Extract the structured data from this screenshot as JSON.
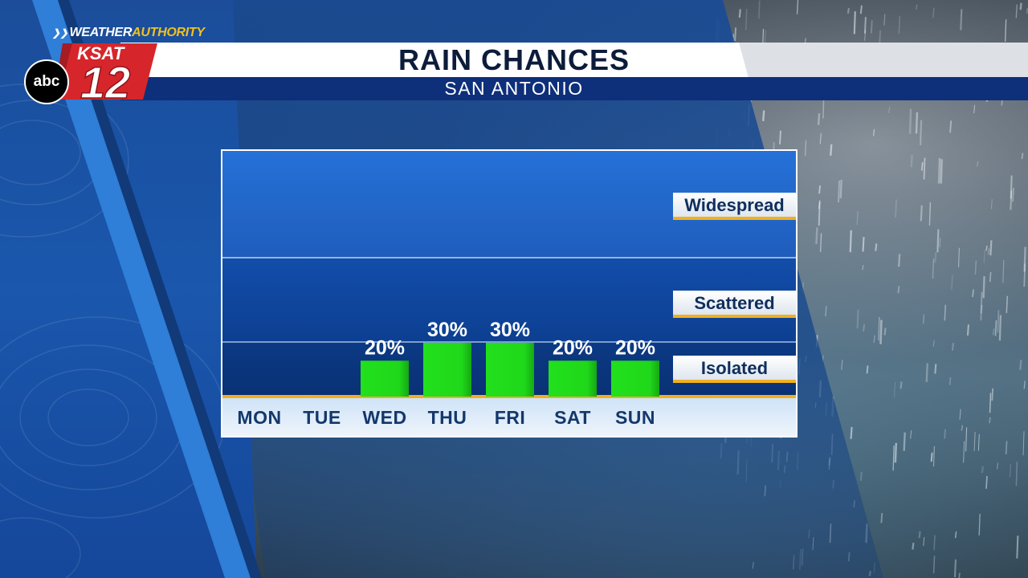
{
  "brand": {
    "weather": "WEATHER",
    "authority": "AUTHORITY",
    "station": "KSAT",
    "channel": "12",
    "network": "abc"
  },
  "header": {
    "title": "RAIN CHANCES",
    "subtitle": "SAN ANTONIO"
  },
  "levels": {
    "widespread": "Widespread",
    "scattered": "Scattered",
    "isolated": "Isolated"
  },
  "colors": {
    "bar": "#1fd81a",
    "accent": "#f2b01e",
    "panel": "#1a57ad",
    "day_text": "#13386b"
  },
  "chart_data": {
    "type": "bar",
    "categories": [
      "MON",
      "TUE",
      "WED",
      "THU",
      "FRI",
      "SAT",
      "SUN"
    ],
    "values": [
      null,
      null,
      20,
      30,
      30,
      20,
      20
    ],
    "data_labels": [
      "",
      "",
      "20%",
      "30%",
      "30%",
      "20%",
      "20%"
    ],
    "title": "RAIN CHANCES",
    "subtitle": "SAN ANTONIO",
    "unit": "%",
    "ylim": [
      0,
      100
    ],
    "thresholds": [
      "Isolated",
      "Scattered",
      "Widespread"
    ],
    "grid": true,
    "legend": "none"
  }
}
